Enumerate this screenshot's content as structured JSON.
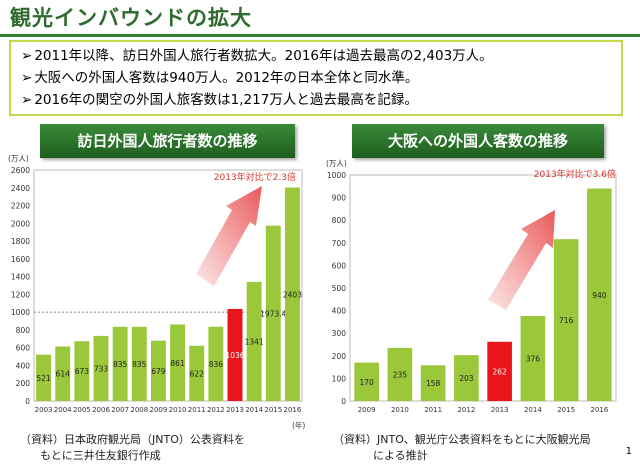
{
  "title": "観光インバウンドの拡大",
  "summary": {
    "bullets": [
      {
        "mark": "➢",
        "text": "2011年以降、訪日外国人旅行者数拡大。2016年は過去最高の2,403万人。"
      },
      {
        "mark": "➢",
        "text": "大阪への外国人客数は940万人。2012年の日本全体と同水準。"
      },
      {
        "mark": "➢",
        "text": "2016年の関空の外国人旅客数は1,217万人と過去最高を記録。"
      }
    ]
  },
  "left_chart_header": "訪日外国人旅行者数の推移",
  "right_chart_header": "大阪への外国人客数の推移",
  "left_source": [
    "（資料）日本政府観光局（JNTO）公表資料を",
    "もとに三井住友銀行作成"
  ],
  "right_source": [
    "（資料）JNTO、観光庁公表資料をもとに大阪観光局",
    "による推計"
  ],
  "page_number": "1",
  "colors": {
    "bar": "#9bc83a",
    "highlight": "#e8161b",
    "accent": "#e0302a"
  },
  "chart_data": [
    {
      "type": "bar",
      "title": "訪日外国人旅行者数の推移",
      "ylabel": "(万人)",
      "xlabel": "(年)",
      "ylim": [
        0,
        2600
      ],
      "yticks": [
        0,
        200,
        400,
        600,
        800,
        1000,
        1200,
        1400,
        1600,
        1800,
        2000,
        2200,
        2400,
        2600
      ],
      "categories": [
        "2003",
        "2004",
        "2005",
        "2006",
        "2007",
        "2008",
        "2009",
        "2010",
        "2011",
        "2012",
        "2013",
        "2014",
        "2015",
        "2016"
      ],
      "values": [
        521,
        614,
        673,
        733,
        835,
        835,
        679,
        861,
        622,
        836,
        1036,
        1341,
        1973.4,
        2403
      ],
      "labels": [
        "521",
        "614",
        "673",
        "733",
        "835",
        "835",
        "679",
        "861",
        "622",
        "836",
        "1036",
        "1341",
        "1973.4",
        "2403"
      ],
      "highlight_index": 10,
      "reference_line": 1000,
      "annotation": "2013年対比で2.3倍"
    },
    {
      "type": "bar",
      "title": "大阪への外国人客数の推移",
      "ylabel": "(万人)",
      "ylim": [
        0,
        1000
      ],
      "yticks": [
        0,
        100,
        200,
        300,
        400,
        500,
        600,
        700,
        800,
        900,
        1000
      ],
      "categories": [
        "2009",
        "2010",
        "2011",
        "2012",
        "2013",
        "2014",
        "2015",
        "2016"
      ],
      "values": [
        170,
        235,
        158,
        203,
        262,
        376,
        716,
        940
      ],
      "labels": [
        "170",
        "235",
        "158",
        "203",
        "262",
        "376",
        "716",
        "940"
      ],
      "highlight_index": 4,
      "annotation": "2013年対比で3.6倍"
    }
  ]
}
